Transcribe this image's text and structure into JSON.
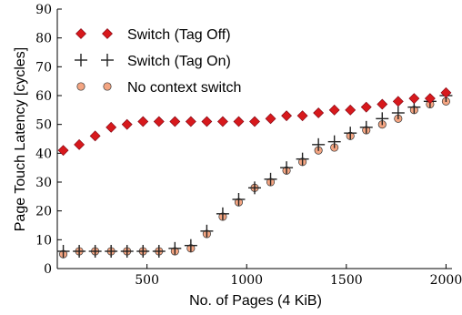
{
  "chart_data": {
    "type": "scatter",
    "xlabel": "No. of Pages (4 KiB)",
    "ylabel": "Page Touch Latency [cycles]",
    "xlim": [
      50,
      2030
    ],
    "ylim": [
      0,
      90
    ],
    "x_ticks": [
      500,
      1000,
      1500,
      2000
    ],
    "y_ticks": [
      0,
      10,
      20,
      30,
      40,
      50,
      60,
      70,
      80,
      90
    ],
    "grid": false,
    "legend_position": "top-left",
    "series": [
      {
        "name": "Switch (Tag Off)",
        "marker": "diamond",
        "color": "#d7191c",
        "x": [
          80,
          160,
          240,
          320,
          400,
          480,
          560,
          640,
          720,
          800,
          880,
          960,
          1040,
          1120,
          1200,
          1280,
          1360,
          1440,
          1520,
          1600,
          1680,
          1760,
          1840,
          1920,
          2000
        ],
        "y": [
          41,
          43,
          46,
          49,
          50,
          51,
          51,
          51,
          51,
          51,
          51,
          51,
          51,
          52,
          53,
          53,
          54,
          55,
          55,
          56,
          57,
          58,
          59,
          59,
          61
        ]
      },
      {
        "name": "Switch (Tag On)",
        "marker": "plus",
        "color": "#222222",
        "x": [
          80,
          160,
          240,
          320,
          400,
          480,
          560,
          640,
          720,
          800,
          880,
          960,
          1040,
          1120,
          1200,
          1280,
          1360,
          1440,
          1520,
          1600,
          1680,
          1760,
          1840,
          1920,
          2000
        ],
        "y": [
          6,
          6,
          6,
          6,
          6,
          6,
          6,
          7,
          8,
          13,
          19,
          24,
          28,
          31,
          35,
          38,
          43,
          44,
          47,
          49,
          52,
          54,
          56,
          58,
          60
        ]
      },
      {
        "name": "No context switch",
        "marker": "circle",
        "color": "#f4a582",
        "x": [
          80,
          160,
          240,
          320,
          400,
          480,
          560,
          640,
          720,
          800,
          880,
          960,
          1040,
          1120,
          1200,
          1280,
          1360,
          1440,
          1520,
          1600,
          1680,
          1760,
          1840,
          1920,
          2000
        ],
        "y": [
          5,
          6,
          6,
          6,
          6,
          6,
          6,
          6,
          7,
          12,
          18,
          23,
          28,
          30,
          34,
          37,
          41,
          42,
          46,
          48,
          50,
          52,
          55,
          57,
          58
        ]
      }
    ]
  }
}
